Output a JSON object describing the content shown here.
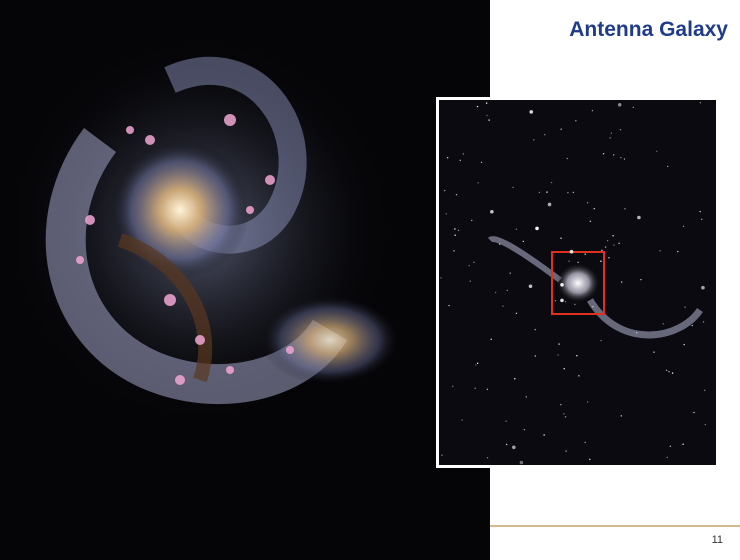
{
  "slide": {
    "title": "Antenna Galaxy",
    "page_number": "11"
  }
}
